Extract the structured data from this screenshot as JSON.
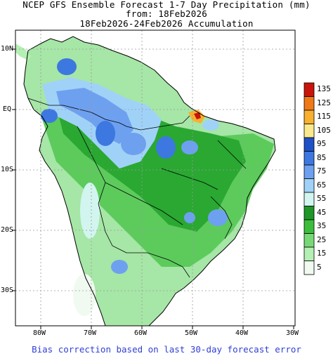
{
  "title": {
    "line1": "NCEP GFS Ensemble Forecast 1-7 Day Precipitation (mm)",
    "line2": "from: 18Feb2026",
    "line3": "18Feb2026-24Feb2026 Accumulation"
  },
  "axes": {
    "x_ticks": [
      "80W",
      "70W",
      "60W",
      "50W",
      "40W",
      "30W"
    ],
    "y_ticks": [
      "10N",
      "EQ",
      "10S",
      "20S",
      "30S"
    ]
  },
  "legend": {
    "levels": [
      {
        "label": "135",
        "color": "#c8140a"
      },
      {
        "label": "125",
        "color": "#f07818"
      },
      {
        "label": "115",
        "color": "#f8b030"
      },
      {
        "label": "105",
        "color": "#fae88c"
      },
      {
        "label": "95",
        "color": "#1e50c8"
      },
      {
        "label": "85",
        "color": "#3c78e0"
      },
      {
        "label": "75",
        "color": "#6ea0f0"
      },
      {
        "label": "65",
        "color": "#a0d2f8"
      },
      {
        "label": "55",
        "color": "#d2f5f0"
      },
      {
        "label": "45",
        "color": "#1e9628"
      },
      {
        "label": "35",
        "color": "#3cbe3c"
      },
      {
        "label": "25",
        "color": "#78d878"
      },
      {
        "label": "15",
        "color": "#b4f0b4"
      },
      {
        "label": "5",
        "color": "#f0faf0"
      }
    ]
  },
  "footer": "Bias correction based on last 30-day forecast error",
  "colors": {
    "frame": "#000000",
    "grid": "#9a9a9a",
    "footer_text": "#2f3fd6"
  }
}
